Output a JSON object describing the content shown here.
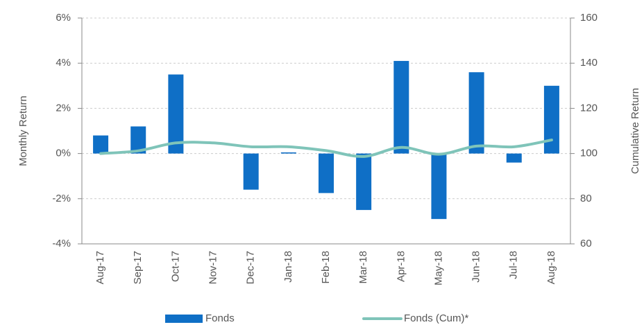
{
  "chart_data": {
    "type": "bar",
    "categories": [
      "Aug-17",
      "Sep-17",
      "Oct-17",
      "Nov-17",
      "Dec-17",
      "Jan-18",
      "Feb-18",
      "Mar-18",
      "Apr-18",
      "May-18",
      "Jun-18",
      "Jul-18",
      "Aug-18"
    ],
    "series": [
      {
        "name": "Fonds",
        "type": "bar",
        "color": "#0f6fc6",
        "values": [
          0.8,
          1.2,
          3.5,
          0,
          -1.6,
          0.05,
          -1.75,
          -2.5,
          4.1,
          -2.9,
          3.6,
          -0.4,
          3.0
        ]
      },
      {
        "name": "Fonds (Cum)*",
        "type": "line",
        "axis": "y2",
        "color": "#7fc4b9",
        "values": [
          100,
          101.2,
          104.7,
          104.7,
          103,
          103,
          101.3,
          98.7,
          102.7,
          99.7,
          103.3,
          103,
          106
        ]
      }
    ],
    "y_label": "Monthly Return",
    "y2_label": "Cumulative Return",
    "ylim": [
      -4,
      6
    ],
    "yticks": [
      {
        "value": -4,
        "label": "-4%"
      },
      {
        "value": -2,
        "label": "-2%"
      },
      {
        "value": 0,
        "label": "0%"
      },
      {
        "value": 2,
        "label": "2%"
      },
      {
        "value": 4,
        "label": "4%"
      },
      {
        "value": 6,
        "label": "6%"
      }
    ],
    "y2lim": [
      60,
      160
    ],
    "y2ticks": [
      60,
      80,
      100,
      120,
      140,
      160
    ],
    "grid": true,
    "legend": "bottom"
  }
}
